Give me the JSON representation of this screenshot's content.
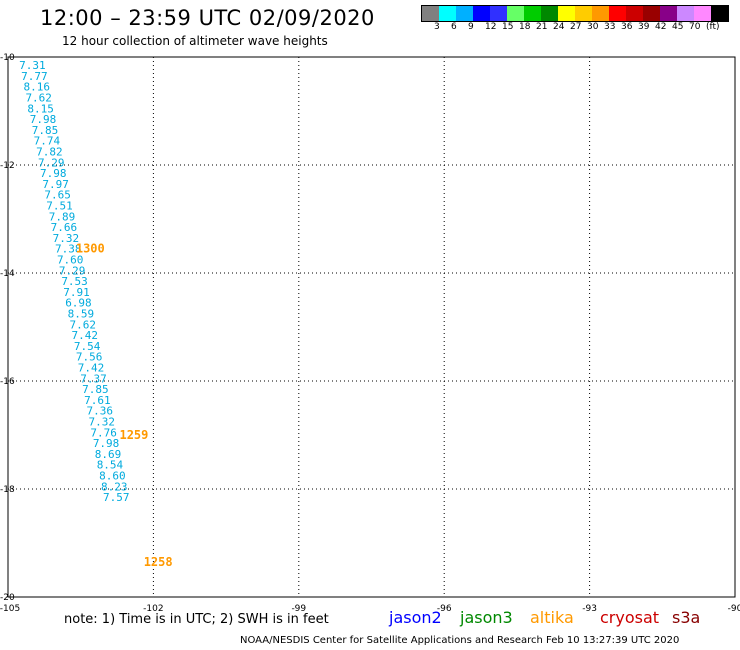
{
  "header": {
    "title": "12:00 – 23:59 UTC 02/09/2020",
    "subtitle": "12 hour collection of altimeter wave heights"
  },
  "legend": {
    "colors": [
      "#808080",
      "#00ffff",
      "#00b0ff",
      "#0000ff",
      "#3030ff",
      "#66ff66",
      "#00cc00",
      "#008800",
      "#ffff00",
      "#ffcc00",
      "#ff9900",
      "#ff0000",
      "#cc0000",
      "#990000",
      "#880088",
      "#cc88ff",
      "#ff88ff",
      "#000000"
    ],
    "labels": [
      "3",
      "6",
      "9",
      "12",
      "15",
      "18",
      "21",
      "24",
      "27",
      "30",
      "33",
      "36",
      "39",
      "42",
      "45",
      "70",
      "(ft)"
    ]
  },
  "footer": {
    "note": "note:  1) Time is in UTC;  2) SWH is in feet",
    "satellites": [
      {
        "name": "jason2",
        "color": "#0000ff"
      },
      {
        "name": "jason3",
        "color": "#008800"
      },
      {
        "name": "altika",
        "color": "#ff9900"
      },
      {
        "name": "cryosat",
        "color": "#cc0000"
      },
      {
        "name": "s3a",
        "color": "#880000"
      }
    ],
    "credit": "NOAA/NESDIS Center for Satellite Applications and Research     Feb 10 13:27:39 UTC 2020"
  },
  "chart_data": {
    "type": "scatter",
    "x_ticks": [
      "-105",
      "-102",
      "-99",
      "-96",
      "-93",
      "-90"
    ],
    "y_ticks": [
      "-10",
      "-12",
      "-14",
      "-16",
      "-18",
      "-20"
    ],
    "xlim": [
      -105,
      -90
    ],
    "ylim": [
      -20,
      -10
    ],
    "grid": true,
    "swh_color": "#00aadd",
    "time_color": "#ff9900",
    "swh_points": [
      {
        "lon": -104.77,
        "lat": -10.15,
        "label": "7.31"
      },
      {
        "lon": -104.73,
        "lat": -10.35,
        "label": "7.77"
      },
      {
        "lon": -104.68,
        "lat": -10.55,
        "label": "8.16"
      },
      {
        "lon": -104.64,
        "lat": -10.75,
        "label": "7.62"
      },
      {
        "lon": -104.6,
        "lat": -10.95,
        "label": "8.15"
      },
      {
        "lon": -104.55,
        "lat": -11.15,
        "label": "7.98"
      },
      {
        "lon": -104.51,
        "lat": -11.35,
        "label": "7.85"
      },
      {
        "lon": -104.47,
        "lat": -11.55,
        "label": "7.74"
      },
      {
        "lon": -104.42,
        "lat": -11.75,
        "label": "7.82"
      },
      {
        "lon": -104.38,
        "lat": -11.95,
        "label": "7.29"
      },
      {
        "lon": -104.34,
        "lat": -12.15,
        "label": "7.98"
      },
      {
        "lon": -104.29,
        "lat": -12.35,
        "label": "7.97"
      },
      {
        "lon": -104.25,
        "lat": -12.55,
        "label": "7.65"
      },
      {
        "lon": -104.21,
        "lat": -12.75,
        "label": "7.51"
      },
      {
        "lon": -104.16,
        "lat": -12.95,
        "label": "7.89"
      },
      {
        "lon": -104.12,
        "lat": -13.15,
        "label": "7.66"
      },
      {
        "lon": -104.08,
        "lat": -13.35,
        "label": "7.32"
      },
      {
        "lon": -104.03,
        "lat": -13.55,
        "label": "7.38"
      },
      {
        "lon": -103.99,
        "lat": -13.75,
        "label": "7.60"
      },
      {
        "lon": -103.95,
        "lat": -13.95,
        "label": "7.29"
      },
      {
        "lon": -103.9,
        "lat": -14.15,
        "label": "7.53"
      },
      {
        "lon": -103.86,
        "lat": -14.35,
        "label": "7.91"
      },
      {
        "lon": -103.82,
        "lat": -14.55,
        "label": "6.98"
      },
      {
        "lon": -103.77,
        "lat": -14.75,
        "label": "8.59"
      },
      {
        "lon": -103.73,
        "lat": -14.95,
        "label": "7.62"
      },
      {
        "lon": -103.69,
        "lat": -15.15,
        "label": "7.42"
      },
      {
        "lon": -103.64,
        "lat": -15.35,
        "label": "7.54"
      },
      {
        "lon": -103.6,
        "lat": -15.55,
        "label": "7.56"
      },
      {
        "lon": -103.56,
        "lat": -15.75,
        "label": "7.42"
      },
      {
        "lon": -103.51,
        "lat": -15.95,
        "label": "7.37"
      },
      {
        "lon": -103.47,
        "lat": -16.15,
        "label": "7.85"
      },
      {
        "lon": -103.43,
        "lat": -16.35,
        "label": "7.61"
      },
      {
        "lon": -103.38,
        "lat": -16.55,
        "label": "7.36"
      },
      {
        "lon": -103.34,
        "lat": -16.75,
        "label": "7.32"
      },
      {
        "lon": -103.3,
        "lat": -16.95,
        "label": "7.76"
      },
      {
        "lon": -103.25,
        "lat": -17.15,
        "label": "7.98"
      },
      {
        "lon": -103.21,
        "lat": -17.35,
        "label": "8.69"
      },
      {
        "lon": -103.17,
        "lat": -17.55,
        "label": "8.54"
      },
      {
        "lon": -103.12,
        "lat": -17.75,
        "label": "8.60"
      },
      {
        "lon": -103.08,
        "lat": -17.95,
        "label": "8.23"
      },
      {
        "lon": -103.04,
        "lat": -18.15,
        "label": "7.57"
      }
    ],
    "time_labels": [
      {
        "lon": -103.6,
        "lat": -13.55,
        "label": "1300"
      },
      {
        "lon": -102.7,
        "lat": -17.0,
        "label": "1259"
      },
      {
        "lon": -102.2,
        "lat": -19.35,
        "label": "1258"
      }
    ]
  }
}
